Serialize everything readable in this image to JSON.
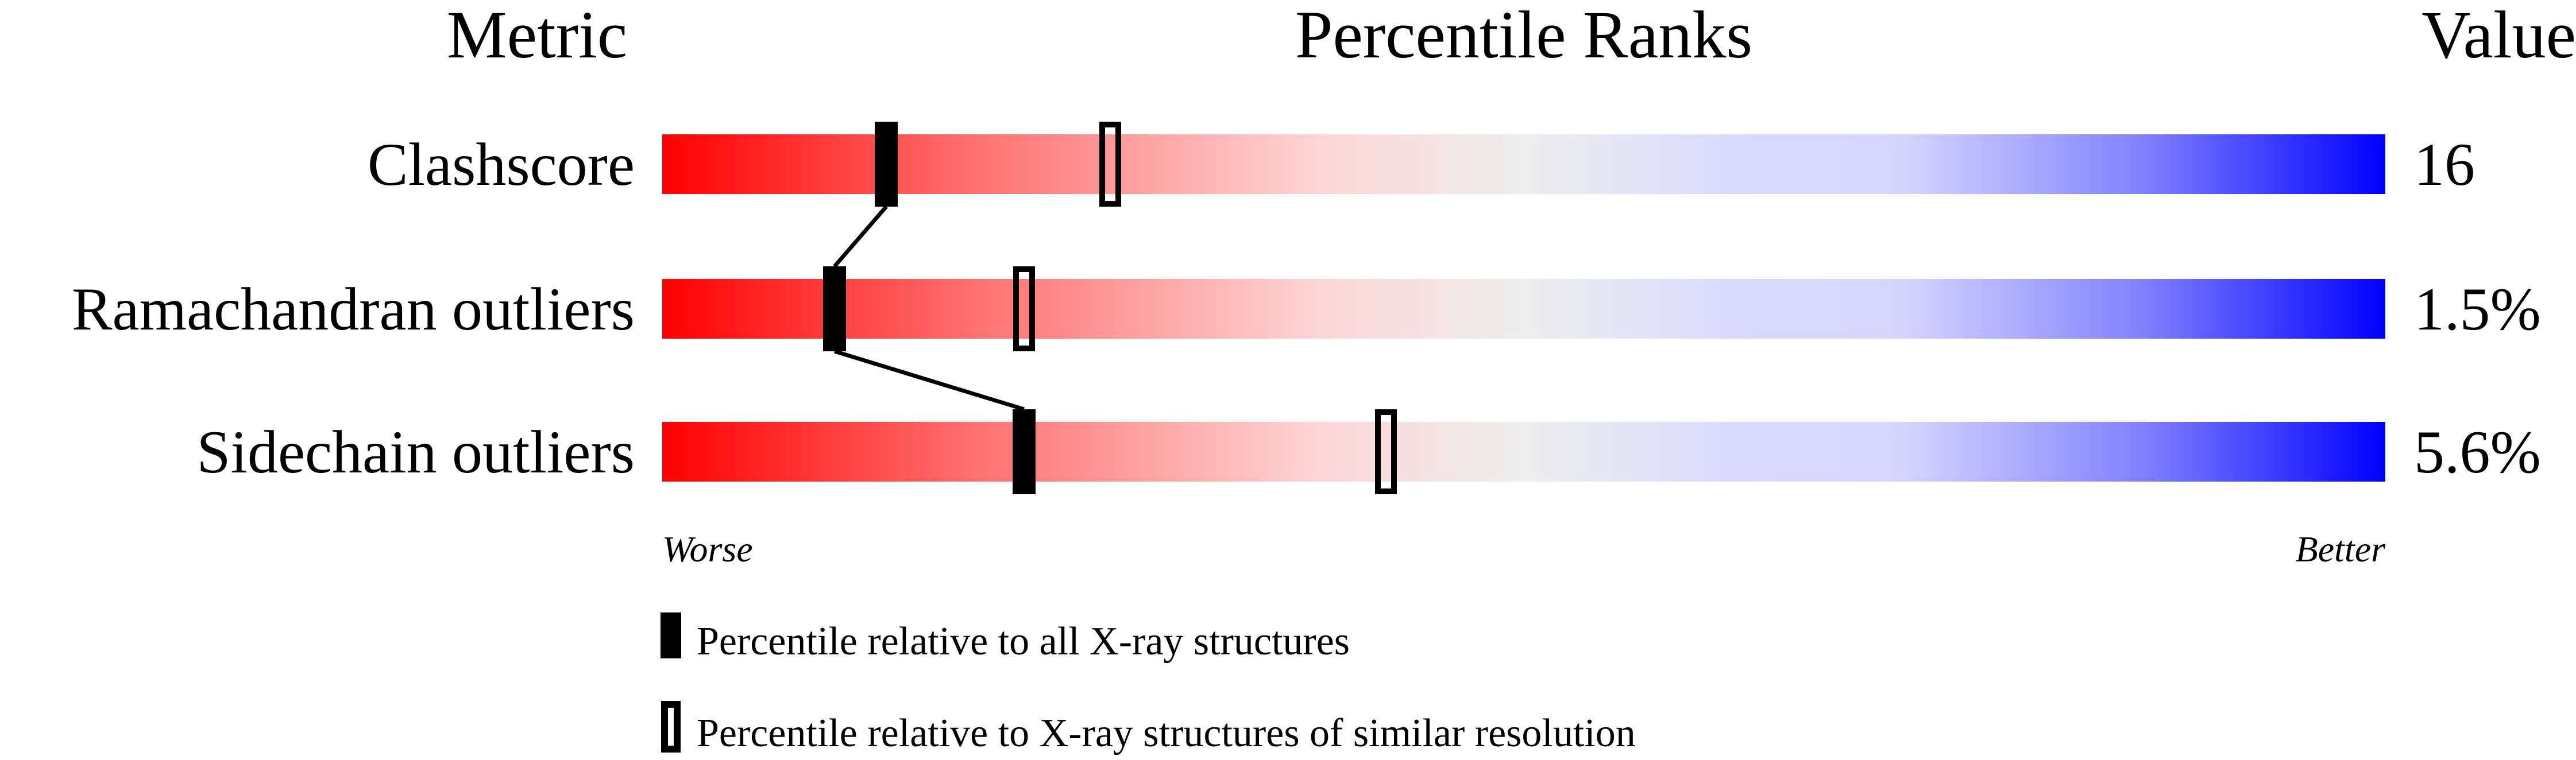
{
  "chart_data": {
    "type": "bar",
    "headers": {
      "metric": "Metric",
      "ranks": "Percentile Ranks",
      "value": "Value"
    },
    "xlim": [
      0,
      100
    ],
    "axis_ends": {
      "left": "Worse",
      "right": "Better"
    },
    "gradient_colors": [
      "#ff0000",
      "#eeeeee",
      "#0000ff"
    ],
    "metrics": [
      {
        "name": "Clashscore",
        "value": "16",
        "percentile_all": 13,
        "percentile_similar": 26
      },
      {
        "name": "Ramachandran outliers",
        "value": "1.5%",
        "percentile_all": 10,
        "percentile_similar": 21
      },
      {
        "name": "Sidechain outliers",
        "value": "5.6%",
        "percentile_all": 21,
        "percentile_similar": 42
      }
    ],
    "legend": [
      {
        "marker": "filled",
        "label": "Percentile relative to all X-ray structures"
      },
      {
        "marker": "open",
        "label": "Percentile relative to X-ray structures of similar resolution"
      }
    ]
  }
}
